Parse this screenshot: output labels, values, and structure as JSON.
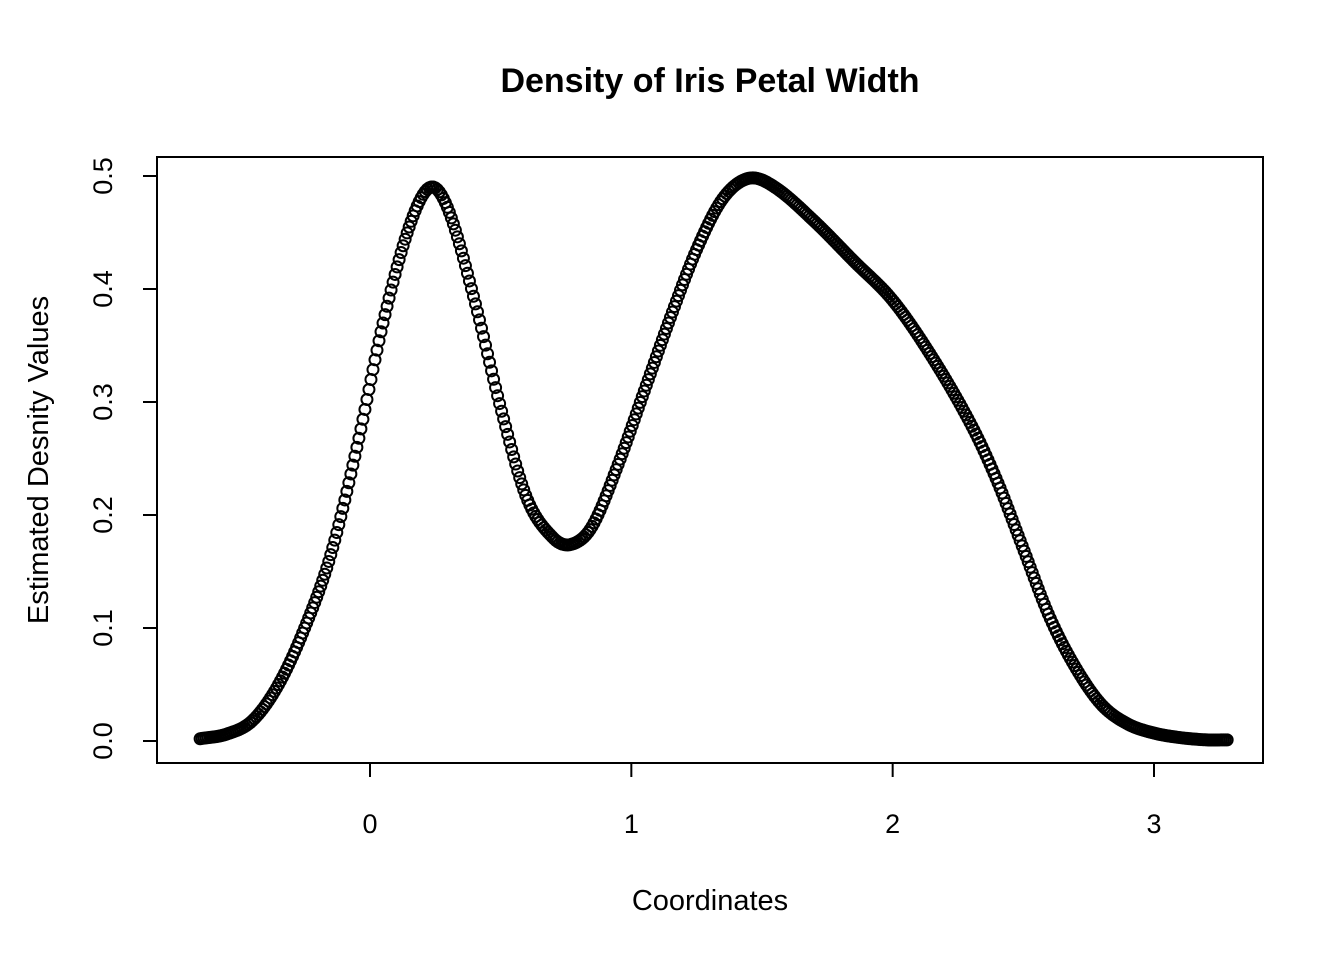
{
  "chart_data": {
    "type": "scatter",
    "title": "Density of Iris Petal Width",
    "xlabel": "Coordinates",
    "ylabel": "Estimated Desnity Values",
    "xlim": [
      -0.65,
      3.28
    ],
    "ylim": [
      0.0,
      0.5
    ],
    "x_ticks": [
      0,
      1,
      2,
      3
    ],
    "y_ticks": [
      0.0,
      0.1,
      0.2,
      0.3,
      0.4,
      0.5
    ],
    "x_tick_labels": [
      "0",
      "1",
      "2",
      "3"
    ],
    "y_tick_labels": [
      "0.0",
      "0.1",
      "0.2",
      "0.3",
      "0.4",
      "0.5"
    ],
    "grid": false,
    "marker": "open-circle",
    "color": "#000000",
    "series": [
      {
        "x": [
          -0.65,
          -0.55,
          -0.45,
          -0.35,
          -0.25,
          -0.15,
          -0.05,
          0.05,
          0.15,
          0.23,
          0.3,
          0.4,
          0.5,
          0.6,
          0.7,
          0.77,
          0.85,
          0.95,
          1.05,
          1.15,
          1.25,
          1.35,
          1.45,
          1.55,
          1.7,
          1.85,
          2.0,
          2.15,
          2.3,
          2.4,
          2.5,
          2.6,
          2.7,
          2.8,
          2.9,
          3.0,
          3.1,
          3.2,
          3.28
        ],
        "y": [
          0.002,
          0.006,
          0.018,
          0.05,
          0.1,
          0.165,
          0.26,
          0.37,
          0.455,
          0.49,
          0.47,
          0.39,
          0.295,
          0.215,
          0.18,
          0.174,
          0.19,
          0.245,
          0.31,
          0.375,
          0.435,
          0.48,
          0.498,
          0.49,
          0.46,
          0.425,
          0.39,
          0.34,
          0.28,
          0.23,
          0.17,
          0.11,
          0.065,
          0.032,
          0.015,
          0.007,
          0.003,
          0.001,
          0.001
        ]
      }
    ]
  }
}
